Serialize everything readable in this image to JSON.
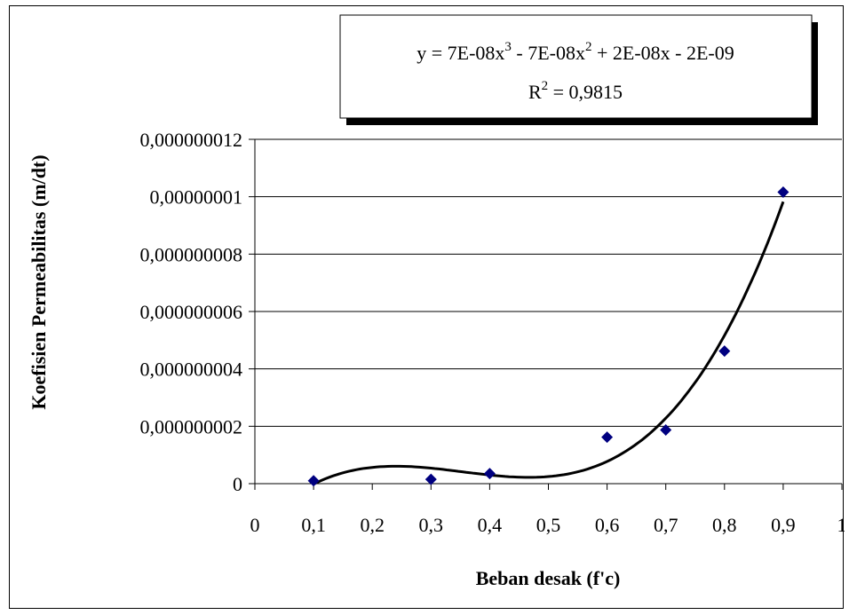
{
  "chart_data": {
    "type": "scatter",
    "xlabel": "Beban desak (f'c)",
    "ylabel": "Koefisien Permeabilitas (m/dt)",
    "xlim": [
      0,
      1
    ],
    "ylim": [
      0,
      1.2e-08
    ],
    "x_ticks": [
      0,
      0.1,
      0.2,
      0.3,
      0.4,
      0.5,
      0.6,
      0.7,
      0.8,
      0.9,
      1
    ],
    "x_tick_labels": [
      "0",
      "0,1",
      "0,2",
      "0,3",
      "0,4",
      "0,5",
      "0,6",
      "0,7",
      "0,8",
      "0,9",
      "1"
    ],
    "y_ticks": [
      0,
      2e-09,
      4e-09,
      6e-09,
      8e-09,
      1e-08,
      1.2e-08
    ],
    "y_tick_labels": [
      "0",
      "0,000000002",
      "0,000000004",
      "0,000000006",
      "0,000000008",
      "0,00000001",
      "0,000000012"
    ],
    "grid": "horizontal",
    "series": [
      {
        "x": [
          0.1,
          0.3,
          0.4,
          0.6,
          0.7,
          0.8,
          0.9
        ],
        "y": [
          1e-10,
          1.5e-10,
          3.5e-10,
          1.62e-09,
          1.87e-09,
          4.62e-09,
          1.016e-08
        ],
        "color": "#000080",
        "marker": "diamond"
      }
    ],
    "trendline": {
      "type": "polynomial",
      "order": 3,
      "x_range": [
        0.1,
        0.9
      ],
      "color": "#000000",
      "equation_parts": {
        "a": "y = 7E-08x",
        "b": "3",
        "c": " - 7E-08x",
        "d": "2",
        "e": " + 2E-08x - 2E-09"
      },
      "r2_parts": {
        "a": "R",
        "b": "2",
        "c": " = 0,9815"
      }
    }
  }
}
